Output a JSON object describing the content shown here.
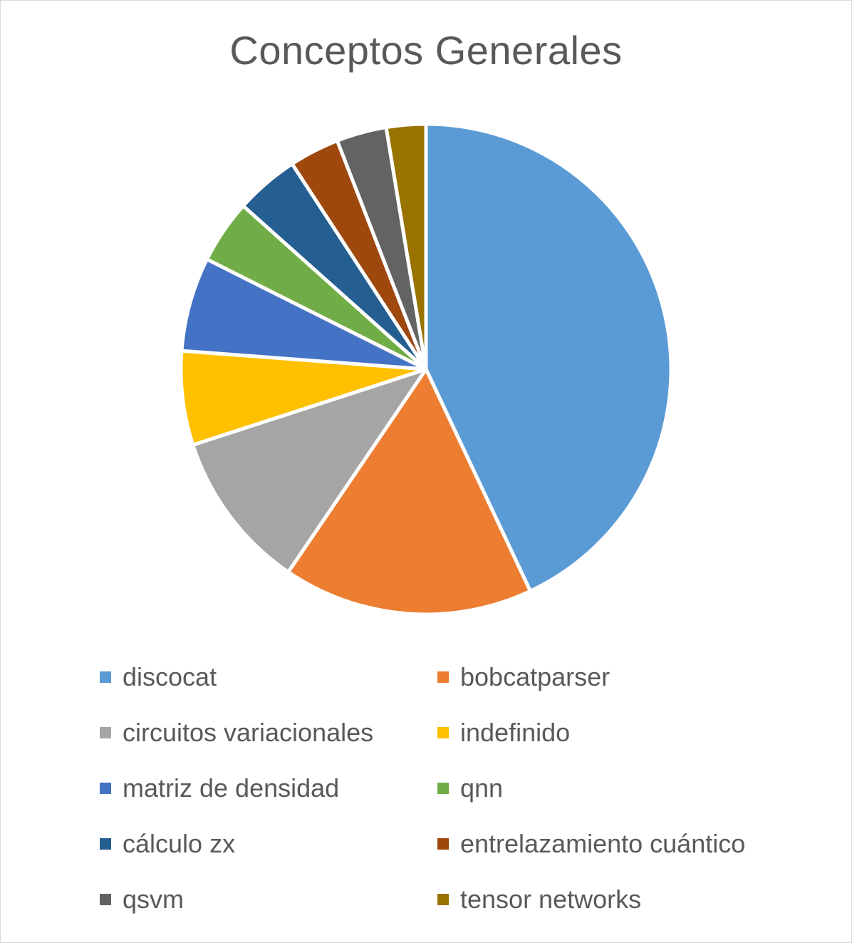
{
  "chart_data": {
    "type": "pie",
    "title": "Conceptos Generales",
    "legend_position": "bottom",
    "slices": [
      {
        "label": "discocat",
        "value": 43,
        "color": "#5b9bd5"
      },
      {
        "label": "bobcatparser",
        "value": 16.5,
        "color": "#ed7d31"
      },
      {
        "label": "circuitos variacionales",
        "value": 10.5,
        "color": "#a5a5a5"
      },
      {
        "label": "indefinido",
        "value": 6.2,
        "color": "#ffc000"
      },
      {
        "label": "matriz de densidad",
        "value": 6.2,
        "color": "#4472c4"
      },
      {
        "label": "qnn",
        "value": 4.2,
        "color": "#70ad47"
      },
      {
        "label": "cálculo zx",
        "value": 4.2,
        "color": "#255e91"
      },
      {
        "label": "entrelazamiento cuántico",
        "value": 3.3,
        "color": "#9e480e"
      },
      {
        "label": "qsvm",
        "value": 3.3,
        "color": "#636363"
      },
      {
        "label": "tensor networks",
        "value": 2.6,
        "color": "#997300"
      }
    ]
  }
}
